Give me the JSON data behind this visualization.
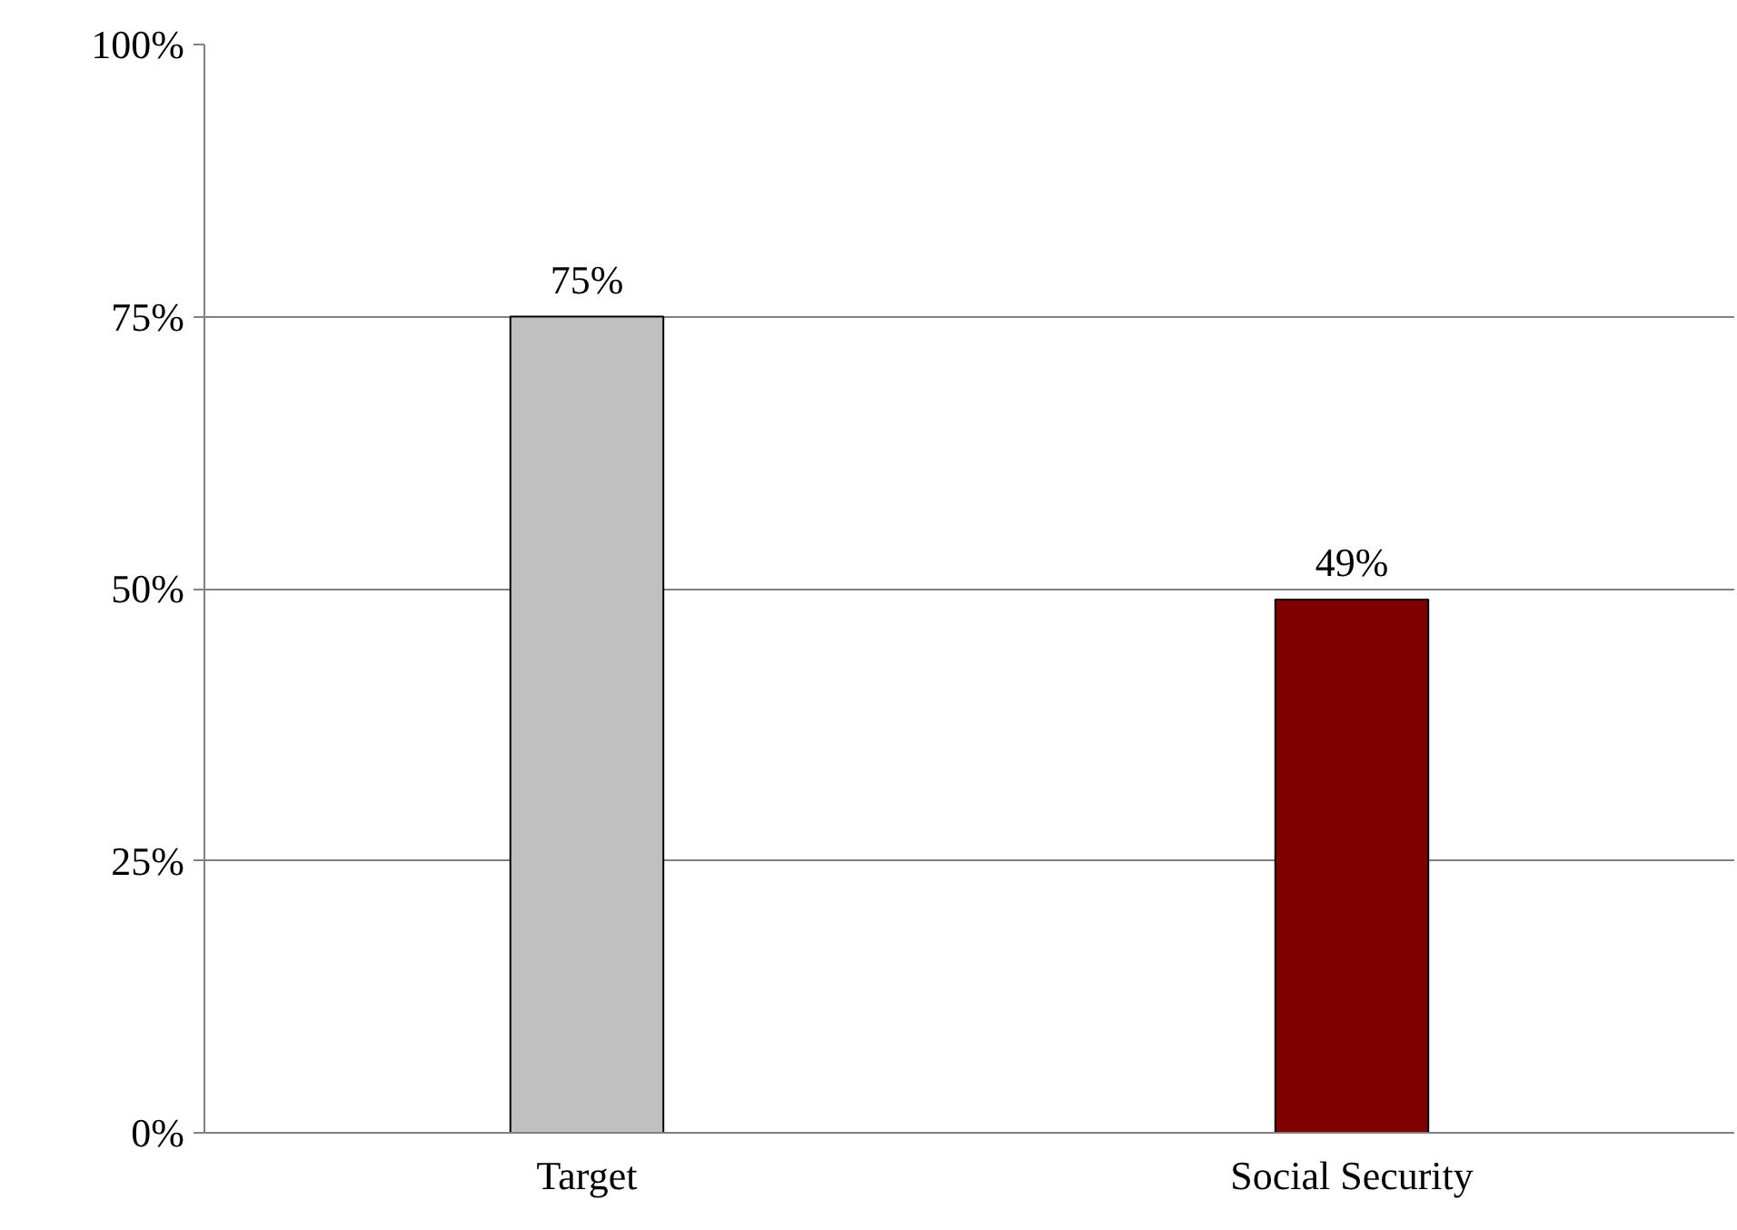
{
  "chart_data": {
    "type": "bar",
    "categories": [
      "Target",
      "Social Security"
    ],
    "values": [
      75,
      49
    ],
    "colors": [
      "#c0c0c0",
      "#800000"
    ],
    "value_labels": [
      "75%",
      "49%"
    ],
    "ylim": [
      0,
      100
    ],
    "yticks": [
      {
        "value": 0,
        "label": "0%"
      },
      {
        "value": 25,
        "label": "25%"
      },
      {
        "value": 50,
        "label": "50%"
      },
      {
        "value": 75,
        "label": "75%"
      },
      {
        "value": 100,
        "label": "100%"
      }
    ],
    "grid": "y"
  }
}
